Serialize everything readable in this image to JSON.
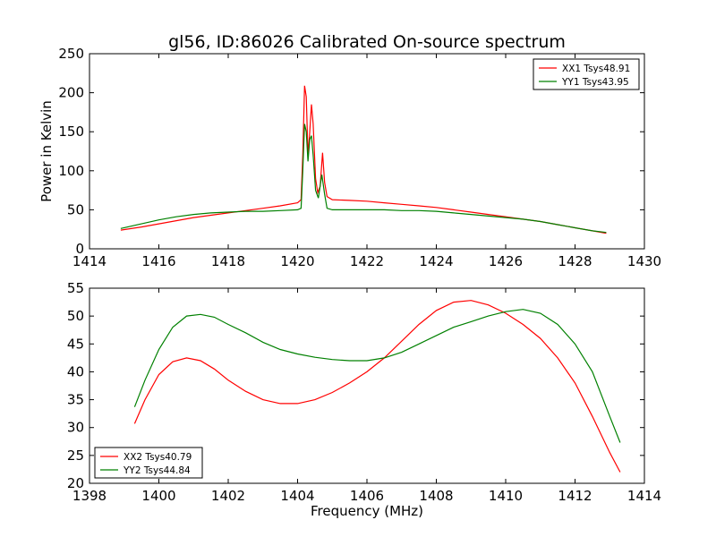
{
  "chart_data": [
    {
      "type": "line",
      "title": "gl56, ID:86026 Calibrated On-source spectrum",
      "xlabel": "",
      "ylabel": "Power in Kelvin",
      "xlim": [
        1414,
        1430
      ],
      "ylim": [
        0,
        250
      ],
      "xticks": [
        1414,
        1416,
        1418,
        1420,
        1422,
        1424,
        1426,
        1428,
        1430
      ],
      "yticks": [
        0,
        50,
        100,
        150,
        200,
        250
      ],
      "legend_position": "top-right",
      "grid": false,
      "series": [
        {
          "name": "XX1 Tsys48.91",
          "color": "#ff0000",
          "points": [
            [
              1414.9,
              24
            ],
            [
              1415.5,
              28
            ],
            [
              1416.0,
              32
            ],
            [
              1416.5,
              36
            ],
            [
              1417.0,
              40
            ],
            [
              1417.5,
              43
            ],
            [
              1418.0,
              46
            ],
            [
              1418.5,
              49
            ],
            [
              1419.0,
              52
            ],
            [
              1419.5,
              55
            ],
            [
              1420.0,
              59
            ],
            [
              1420.1,
              63
            ],
            [
              1420.15,
              120
            ],
            [
              1420.2,
              209
            ],
            [
              1420.25,
              195
            ],
            [
              1420.3,
              120
            ],
            [
              1420.35,
              150
            ],
            [
              1420.4,
              185
            ],
            [
              1420.45,
              160
            ],
            [
              1420.52,
              90
            ],
            [
              1420.58,
              72
            ],
            [
              1420.65,
              80
            ],
            [
              1420.72,
              123
            ],
            [
              1420.78,
              85
            ],
            [
              1420.85,
              67
            ],
            [
              1421.0,
              63
            ],
            [
              1421.5,
              62
            ],
            [
              1422.0,
              61
            ],
            [
              1422.5,
              59
            ],
            [
              1423.0,
              57
            ],
            [
              1423.5,
              55
            ],
            [
              1424.0,
              53
            ],
            [
              1424.5,
              50
            ],
            [
              1425.0,
              47
            ],
            [
              1425.5,
              44
            ],
            [
              1426.0,
              41
            ],
            [
              1426.5,
              38
            ],
            [
              1427.0,
              35
            ],
            [
              1427.5,
              31
            ],
            [
              1428.0,
              27
            ],
            [
              1428.5,
              23
            ],
            [
              1428.9,
              20
            ]
          ]
        },
        {
          "name": "YY1 Tsys43.95",
          "color": "#008000",
          "points": [
            [
              1414.9,
              26
            ],
            [
              1415.5,
              32
            ],
            [
              1416.0,
              37
            ],
            [
              1416.5,
              41
            ],
            [
              1417.0,
              44
            ],
            [
              1417.5,
              46
            ],
            [
              1418.0,
              47
            ],
            [
              1418.5,
              48
            ],
            [
              1419.0,
              48
            ],
            [
              1419.5,
              49
            ],
            [
              1420.0,
              50
            ],
            [
              1420.1,
              52
            ],
            [
              1420.15,
              100
            ],
            [
              1420.2,
              160
            ],
            [
              1420.25,
              150
            ],
            [
              1420.3,
              112
            ],
            [
              1420.35,
              140
            ],
            [
              1420.4,
              145
            ],
            [
              1420.45,
              120
            ],
            [
              1420.52,
              75
            ],
            [
              1420.6,
              65
            ],
            [
              1420.7,
              95
            ],
            [
              1420.78,
              70
            ],
            [
              1420.85,
              52
            ],
            [
              1421.0,
              50
            ],
            [
              1421.5,
              50
            ],
            [
              1422.0,
              50
            ],
            [
              1422.5,
              50
            ],
            [
              1423.0,
              49
            ],
            [
              1423.5,
              49
            ],
            [
              1424.0,
              48
            ],
            [
              1424.5,
              46
            ],
            [
              1425.0,
              44
            ],
            [
              1425.5,
              42
            ],
            [
              1426.0,
              40
            ],
            [
              1426.5,
              38
            ],
            [
              1427.0,
              35
            ],
            [
              1427.5,
              31
            ],
            [
              1428.0,
              27
            ],
            [
              1428.5,
              23
            ],
            [
              1428.9,
              21
            ]
          ]
        }
      ]
    },
    {
      "type": "line",
      "title": "",
      "xlabel": "Frequency (MHz)",
      "ylabel": "",
      "xlim": [
        1398,
        1414
      ],
      "ylim": [
        20,
        55
      ],
      "xticks": [
        1398,
        1400,
        1402,
        1404,
        1406,
        1408,
        1410,
        1412,
        1414
      ],
      "yticks": [
        20,
        25,
        30,
        35,
        40,
        45,
        50,
        55
      ],
      "legend_position": "bottom-left",
      "grid": false,
      "series": [
        {
          "name": "XX2 Tsys40.79",
          "color": "#ff0000",
          "points": [
            [
              1399.3,
              30.7
            ],
            [
              1399.6,
              35
            ],
            [
              1400.0,
              39.5
            ],
            [
              1400.4,
              41.8
            ],
            [
              1400.8,
              42.5
            ],
            [
              1401.2,
              42.0
            ],
            [
              1401.6,
              40.5
            ],
            [
              1402.0,
              38.5
            ],
            [
              1402.5,
              36.5
            ],
            [
              1403.0,
              35.0
            ],
            [
              1403.5,
              34.3
            ],
            [
              1404.0,
              34.3
            ],
            [
              1404.5,
              35.0
            ],
            [
              1405.0,
              36.3
            ],
            [
              1405.5,
              38.0
            ],
            [
              1406.0,
              40.0
            ],
            [
              1406.5,
              42.5
            ],
            [
              1407.0,
              45.5
            ],
            [
              1407.5,
              48.5
            ],
            [
              1408.0,
              51.0
            ],
            [
              1408.5,
              52.5
            ],
            [
              1409.0,
              52.8
            ],
            [
              1409.5,
              52.0
            ],
            [
              1410.0,
              50.5
            ],
            [
              1410.5,
              48.5
            ],
            [
              1411.0,
              46.0
            ],
            [
              1411.5,
              42.5
            ],
            [
              1412.0,
              38.0
            ],
            [
              1412.5,
              32.0
            ],
            [
              1413.0,
              25.5
            ],
            [
              1413.3,
              22.0
            ]
          ]
        },
        {
          "name": "YY2 Tsys44.84",
          "color": "#008000",
          "points": [
            [
              1399.3,
              33.7
            ],
            [
              1399.6,
              38.5
            ],
            [
              1400.0,
              44.0
            ],
            [
              1400.4,
              48.0
            ],
            [
              1400.8,
              50.0
            ],
            [
              1401.2,
              50.3
            ],
            [
              1401.6,
              49.8
            ],
            [
              1402.0,
              48.5
            ],
            [
              1402.5,
              47.0
            ],
            [
              1403.0,
              45.3
            ],
            [
              1403.5,
              44.0
            ],
            [
              1404.0,
              43.2
            ],
            [
              1404.5,
              42.6
            ],
            [
              1405.0,
              42.2
            ],
            [
              1405.5,
              42.0
            ],
            [
              1406.0,
              42.0
            ],
            [
              1406.5,
              42.5
            ],
            [
              1407.0,
              43.5
            ],
            [
              1407.5,
              45.0
            ],
            [
              1408.0,
              46.5
            ],
            [
              1408.5,
              48.0
            ],
            [
              1409.0,
              49.0
            ],
            [
              1409.5,
              50.0
            ],
            [
              1410.0,
              50.8
            ],
            [
              1410.5,
              51.2
            ],
            [
              1411.0,
              50.5
            ],
            [
              1411.5,
              48.5
            ],
            [
              1412.0,
              45.0
            ],
            [
              1412.5,
              40.0
            ],
            [
              1413.0,
              32.0
            ],
            [
              1413.3,
              27.3
            ]
          ]
        }
      ]
    }
  ]
}
